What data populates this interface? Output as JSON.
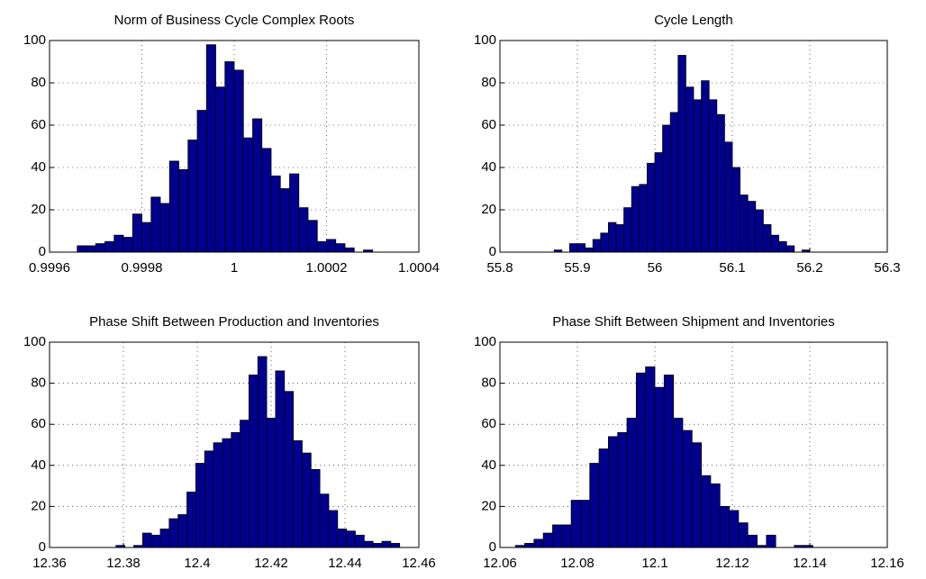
{
  "chart_data": [
    {
      "type": "histogram",
      "title": "Norm of Business Cycle Complex Roots",
      "color": "#00008f",
      "grid": true,
      "bins": [
        0.99966,
        0.99968,
        0.9997,
        0.99972,
        0.99974,
        0.99976,
        0.99978,
        0.9998,
        0.99982,
        0.99984,
        0.99986,
        0.99988,
        0.9999,
        0.99992,
        0.99994,
        0.99996,
        0.99998,
        1,
        1.00002,
        1.00004,
        1.00006,
        1.00008,
        1.0001,
        1.00012,
        1.00014,
        1.00016,
        1.00018,
        1.0002,
        1.00022,
        1.00024,
        1.00026,
        1.00028,
        1.0003
      ],
      "values": [
        3,
        3,
        4,
        5,
        8,
        7,
        18,
        14,
        26,
        23,
        43,
        39,
        53,
        67,
        98,
        78,
        90,
        86,
        54,
        63,
        49,
        36,
        30,
        37,
        21,
        15,
        5,
        6,
        4,
        2,
        0,
        1
      ],
      "xlim": [
        0.9996,
        1.0004
      ],
      "xticks": [
        0.9996,
        0.9998,
        1,
        1.0002,
        1.0004
      ],
      "ylim": [
        0,
        100
      ],
      "yticks": [
        0,
        20,
        40,
        60,
        80,
        100
      ]
    },
    {
      "type": "histogram",
      "title": "Cycle Length",
      "color": "#00008f",
      "grid": true,
      "bins": [
        55.87,
        55.88,
        55.89,
        55.9,
        55.91,
        55.92,
        55.93,
        55.94,
        55.95,
        55.96,
        55.97,
        55.98,
        55.99,
        56,
        56.01,
        56.02,
        56.03,
        56.04,
        56.05,
        56.06,
        56.07,
        56.08,
        56.09,
        56.1,
        56.11,
        56.12,
        56.13,
        56.14,
        56.15,
        56.16,
        56.17,
        56.18,
        56.19,
        56.2,
        56.21
      ],
      "values": [
        1,
        0,
        4,
        4,
        2,
        6,
        9,
        14,
        13,
        21,
        31,
        32,
        42,
        47,
        60,
        66,
        93,
        78,
        72,
        81,
        72,
        65,
        52,
        40,
        27,
        24,
        20,
        13,
        8,
        5,
        3,
        0,
        1,
        0
      ],
      "xlim": [
        55.8,
        56.3
      ],
      "xticks": [
        55.8,
        55.9,
        56,
        56.1,
        56.2,
        56.3
      ],
      "ylim": [
        0,
        100
      ],
      "yticks": [
        0,
        20,
        40,
        60,
        80,
        100
      ]
    },
    {
      "type": "histogram",
      "title": "Phase Shift Between Production and Inventories",
      "color": "#00008f",
      "grid": true,
      "bins": [
        12.378,
        12.3804,
        12.3828,
        12.3852,
        12.3876,
        12.39,
        12.3924,
        12.3948,
        12.3972,
        12.3996,
        12.402,
        12.4044,
        12.4068,
        12.4092,
        12.4116,
        12.414,
        12.4164,
        12.4188,
        12.4212,
        12.4236,
        12.426,
        12.4284,
        12.4308,
        12.4332,
        12.4356,
        12.438,
        12.4404,
        12.4428,
        12.4452,
        12.4476,
        12.45,
        12.4524,
        12.4548
      ],
      "values": [
        1,
        0,
        1,
        7,
        6,
        9,
        14,
        16,
        27,
        41,
        47,
        51,
        53,
        56,
        62,
        84,
        93,
        63,
        86,
        76,
        52,
        46,
        38,
        26,
        18,
        9,
        8,
        6,
        3,
        2,
        3,
        2
      ],
      "xlim": [
        12.36,
        12.46
      ],
      "xticks": [
        12.36,
        12.38,
        12.4,
        12.42,
        12.44,
        12.46
      ],
      "ylim": [
        0,
        100
      ],
      "yticks": [
        0,
        20,
        40,
        60,
        80,
        100
      ]
    },
    {
      "type": "histogram",
      "title": "Phase Shift Between Shipment and Inventories",
      "color": "#00008f",
      "grid": true,
      "bins": [
        12.064,
        12.0664,
        12.0688,
        12.0712,
        12.0736,
        12.076,
        12.0784,
        12.0808,
        12.0832,
        12.0856,
        12.088,
        12.0904,
        12.0928,
        12.0952,
        12.0976,
        12.1,
        12.1024,
        12.1048,
        12.1072,
        12.1096,
        12.112,
        12.1144,
        12.1168,
        12.1192,
        12.1216,
        12.124,
        12.1264,
        12.1288,
        12.1312,
        12.1336,
        12.136,
        12.1384,
        12.1408
      ],
      "values": [
        1,
        2,
        4,
        7,
        11,
        11,
        23,
        23,
        41,
        48,
        54,
        56,
        63,
        85,
        88,
        78,
        84,
        63,
        57,
        51,
        35,
        31,
        20,
        18,
        12,
        6,
        1,
        6,
        0,
        0,
        1,
        1
      ],
      "xlim": [
        12.06,
        12.16
      ],
      "xticks": [
        12.06,
        12.08,
        12.1,
        12.12,
        12.14,
        12.16
      ],
      "ylim": [
        0,
        100
      ],
      "yticks": [
        0,
        20,
        40,
        60,
        80,
        100
      ]
    }
  ]
}
